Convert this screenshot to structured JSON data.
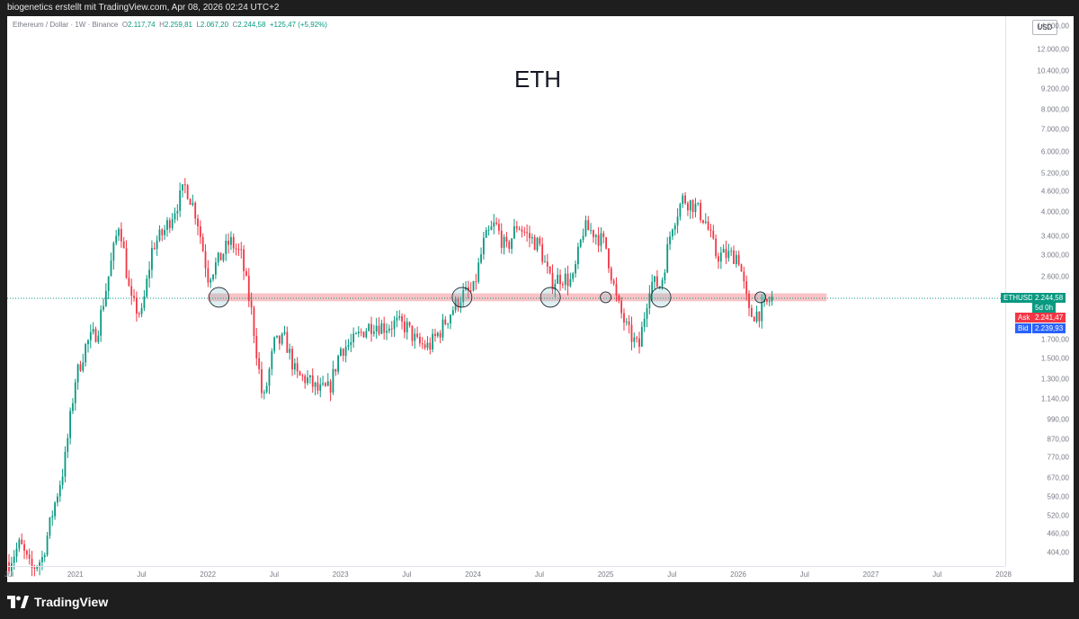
{
  "header": {
    "caption": "biogenetics erstellt mit TradingView.com, Apr 08, 2026 02:24 UTC+2"
  },
  "symbol": {
    "name": "Ethereum / Dollar · 1W · Binance",
    "open_label": "O",
    "open": "2.117,74",
    "high_label": "H",
    "high": "2.259,81",
    "low_label": "L",
    "low": "2.067,20",
    "close_label": "C",
    "close": "2.244,58",
    "change": "+125,47 (+5,92%)"
  },
  "currency_button": "USD",
  "title": "ETH",
  "price_axis": {
    "scale": "log",
    "ticks": [
      "14.000,00",
      "12.000,00",
      "10.400,00",
      "9.200,00",
      "8.000,00",
      "7.000,00",
      "6.000,00",
      "5.200,00",
      "4.600,00",
      "4.000,00",
      "3.400,00",
      "3.000,00",
      "2.600,00",
      "1.700,00",
      "1.500,00",
      "1.300,00",
      "1.140,00",
      "990,00",
      "870,00",
      "770,00",
      "670,00",
      "590,00",
      "520,00",
      "460,00",
      "404,00"
    ]
  },
  "time_axis": {
    "ticks": [
      "Jul",
      "2021",
      "Jul",
      "2022",
      "Jul",
      "2023",
      "Jul",
      "2024",
      "Jul",
      "2025",
      "Jul",
      "2026",
      "Jul",
      "2027",
      "Jul",
      "2028"
    ]
  },
  "price_labels": {
    "symbol_tag": "ETHUSD",
    "last": "2.244,58",
    "countdown": "5d 0h",
    "ask_label": "Ask",
    "ask": "2.241,47",
    "bid_label": "Bid",
    "bid": "2.239,93"
  },
  "colors": {
    "up": "#089981",
    "down": "#f23645",
    "zone": "#f7b4b8",
    "bid": "#2962ff",
    "last": "#089981"
  },
  "chart_data": {
    "type": "candlestick",
    "title": "ETH",
    "y_scale": "log",
    "ylim": [
      370,
      15000
    ],
    "xlim": [
      "2020-07",
      "2028-01"
    ],
    "support_zone": {
      "low": 2200,
      "high": 2320,
      "from": "2022-01",
      "to": "2026-09"
    },
    "current_price": 2244.58,
    "touch_markers": [
      "2022-02",
      "2023-12",
      "2024-08",
      "2025-01",
      "2025-06",
      "2026-03"
    ],
    "path": [
      [
        "2020-07",
        380
      ],
      [
        "2020-08",
        430
      ],
      [
        "2020-09",
        360
      ],
      [
        "2020-10",
        390
      ],
      [
        "2020-11",
        540
      ],
      [
        "2020-12",
        730
      ],
      [
        "2021-01",
        1300
      ],
      [
        "2021-02",
        1650
      ],
      [
        "2021-03",
        1800
      ],
      [
        "2021-04",
        2600
      ],
      [
        "2021-05",
        3800
      ],
      [
        "2021-06",
        2200
      ],
      [
        "2021-07",
        2000
      ],
      [
        "2021-08",
        3200
      ],
      [
        "2021-09",
        3500
      ],
      [
        "2021-10",
        4100
      ],
      [
        "2021-11",
        4800
      ],
      [
        "2021-12",
        3900
      ],
      [
        "2022-01",
        2600
      ],
      [
        "2022-02",
        2900
      ],
      [
        "2022-03",
        3300
      ],
      [
        "2022-04",
        3000
      ],
      [
        "2022-05",
        2000
      ],
      [
        "2022-06",
        1100
      ],
      [
        "2022-07",
        1650
      ],
      [
        "2022-08",
        1700
      ],
      [
        "2022-09",
        1330
      ],
      [
        "2022-10",
        1300
      ],
      [
        "2022-11",
        1200
      ],
      [
        "2022-12",
        1220
      ],
      [
        "2023-01",
        1600
      ],
      [
        "2023-02",
        1650
      ],
      [
        "2023-03",
        1800
      ],
      [
        "2023-04",
        1900
      ],
      [
        "2023-05",
        1850
      ],
      [
        "2023-06",
        1900
      ],
      [
        "2023-07",
        1850
      ],
      [
        "2023-08",
        1650
      ],
      [
        "2023-09",
        1620
      ],
      [
        "2023-10",
        1800
      ],
      [
        "2023-11",
        2050
      ],
      [
        "2023-12",
        2300
      ],
      [
        "2024-01",
        2350
      ],
      [
        "2024-02",
        3300
      ],
      [
        "2024-03",
        3700
      ],
      [
        "2024-04",
        3100
      ],
      [
        "2024-05",
        3700
      ],
      [
        "2024-06",
        3400
      ],
      [
        "2024-07",
        3200
      ],
      [
        "2024-08",
        2500
      ],
      [
        "2024-09",
        2600
      ],
      [
        "2024-10",
        2500
      ],
      [
        "2024-11",
        3600
      ],
      [
        "2024-12",
        3500
      ],
      [
        "2025-01",
        3200
      ],
      [
        "2025-02",
        2200
      ],
      [
        "2025-03",
        1800
      ],
      [
        "2025-04",
        1600
      ],
      [
        "2025-05",
        2500
      ],
      [
        "2025-06",
        2450
      ],
      [
        "2025-07",
        3700
      ],
      [
        "2025-08",
        4400
      ],
      [
        "2025-09",
        4200
      ],
      [
        "2025-10",
        3800
      ],
      [
        "2025-11",
        3000
      ],
      [
        "2025-12",
        3000
      ],
      [
        "2026-01",
        3000
      ],
      [
        "2026-02",
        2000
      ],
      [
        "2026-03",
        2050
      ],
      [
        "2026-04",
        2245
      ]
    ]
  },
  "footer": {
    "brand": "TradingView"
  }
}
